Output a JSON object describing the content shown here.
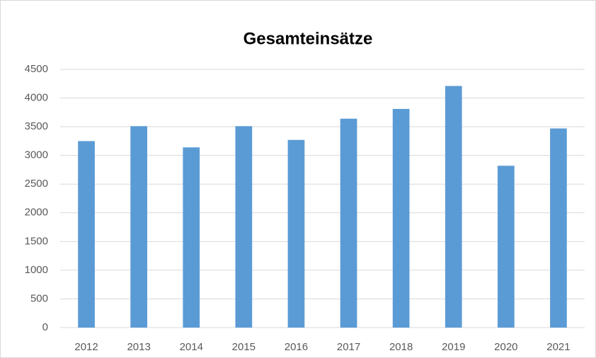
{
  "chart_data": {
    "type": "bar",
    "title": "Gesamteinsätze",
    "categories": [
      "2012",
      "2013",
      "2014",
      "2015",
      "2016",
      "2017",
      "2018",
      "2019",
      "2020",
      "2021"
    ],
    "values": [
      3250,
      3510,
      3140,
      3510,
      3270,
      3640,
      3810,
      4210,
      2820,
      3470
    ],
    "color": "#5b9bd5",
    "ylim": [
      0,
      4500
    ],
    "yticks": [
      0,
      500,
      1000,
      1500,
      2000,
      2500,
      3000,
      3500,
      4000,
      4500
    ],
    "grid": true
  }
}
